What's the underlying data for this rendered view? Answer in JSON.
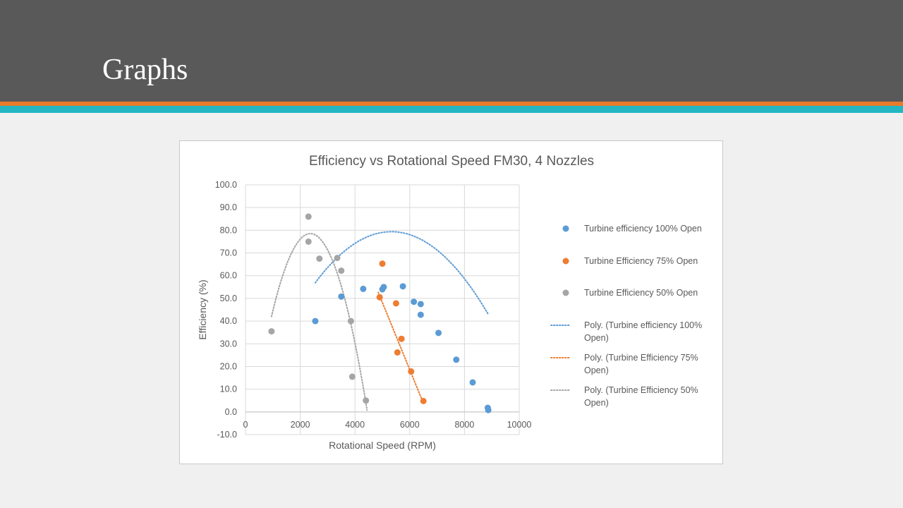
{
  "slide": {
    "title": "Graphs"
  },
  "colors": {
    "header_bg": "#595959",
    "stripe_orange": "#e97a2b",
    "stripe_teal": "#25b6c4",
    "series_100": "#5b9bd5",
    "series_75": "#ed7d31",
    "series_50": "#a5a5a5"
  },
  "chart_data": {
    "type": "scatter",
    "title": "Efficiency vs Rotational Speed FM30, 4 Nozzles",
    "xlabel": "Rotational Speed (RPM)",
    "ylabel": "Efficiency (%)",
    "xlim": [
      0,
      10000
    ],
    "ylim": [
      -10,
      100
    ],
    "x_ticks": [
      "0",
      "2000",
      "4000",
      "6000",
      "8000",
      "10000"
    ],
    "y_ticks": [
      "-10.0",
      "0.0",
      "10.0",
      "20.0",
      "30.0",
      "40.0",
      "50.0",
      "60.0",
      "70.0",
      "80.0",
      "90.0",
      "100.0"
    ],
    "grid": true,
    "legend_position": "right",
    "series": [
      {
        "name": "Turbine efficiency 100% Open",
        "color": "#5b9bd5",
        "points": [
          [
            2550,
            40
          ],
          [
            3500,
            50.8
          ],
          [
            4300,
            54.2
          ],
          [
            5000,
            54
          ],
          [
            5050,
            55
          ],
          [
            5750,
            55.3
          ],
          [
            6150,
            48.5
          ],
          [
            6400,
            47.5
          ],
          [
            6400,
            42.8
          ],
          [
            7050,
            34.8
          ],
          [
            7700,
            23
          ],
          [
            8300,
            13
          ],
          [
            8850,
            1.8
          ],
          [
            8870,
            0.8
          ]
        ]
      },
      {
        "name": "Turbine Efficiency 75% Open",
        "color": "#ed7d31",
        "points": [
          [
            5000,
            65.3
          ],
          [
            4900,
            50.5
          ],
          [
            5500,
            47.8
          ],
          [
            5700,
            32.2
          ],
          [
            5550,
            26.2
          ],
          [
            6050,
            17.8
          ],
          [
            6500,
            4.8
          ]
        ]
      },
      {
        "name": "Turbine Efficiency 50% Open",
        "color": "#a5a5a5",
        "points": [
          [
            950,
            35.5
          ],
          [
            2300,
            86
          ],
          [
            2300,
            75
          ],
          [
            2700,
            67.5
          ],
          [
            3350,
            67.8
          ],
          [
            3500,
            62.2
          ],
          [
            3850,
            40
          ],
          [
            3900,
            15.5
          ],
          [
            4400,
            5
          ]
        ]
      }
    ],
    "trendlines": [
      {
        "name": "Poly. (Turbine efficiency 100% Open)",
        "color": "#5b9bd5",
        "style": "dotted",
        "range": [
          2550,
          8870
        ],
        "coeffs": [
          -3.24,
          0.031,
          -2.908e-06
        ]
      },
      {
        "name": "Poly. (Turbine Efficiency 75% Open)",
        "color": "#ed7d31",
        "style": "dotted",
        "range": [
          4850,
          6500
        ],
        "coeffs": [
          196.2,
          -0.0296,
          0
        ]
      },
      {
        "name": "Poly. (Turbine Efficiency 50% Open)",
        "color": "#a5a5a5",
        "style": "dotted",
        "range": [
          950,
          4440
        ],
        "coeffs": [
          -23.2,
          0.0859,
          -1.813e-05
        ]
      }
    ],
    "legend_entries": [
      {
        "type": "marker",
        "color": "#5b9bd5",
        "lines": [
          "Turbine efficiency 100% Open"
        ]
      },
      {
        "type": "marker",
        "color": "#ed7d31",
        "lines": [
          "Turbine Efficiency 75% Open"
        ]
      },
      {
        "type": "marker",
        "color": "#a5a5a5",
        "lines": [
          "Turbine Efficiency 50% Open"
        ]
      },
      {
        "type": "line",
        "color": "#5b9bd5",
        "lines": [
          "Poly. (Turbine efficiency 100%",
          "Open)"
        ]
      },
      {
        "type": "line",
        "color": "#ed7d31",
        "lines": [
          "Poly. (Turbine Efficiency 75%",
          "Open)"
        ]
      },
      {
        "type": "line",
        "color": "#a5a5a5",
        "lines": [
          "Poly. (Turbine Efficiency 50%",
          "Open)"
        ]
      }
    ]
  }
}
